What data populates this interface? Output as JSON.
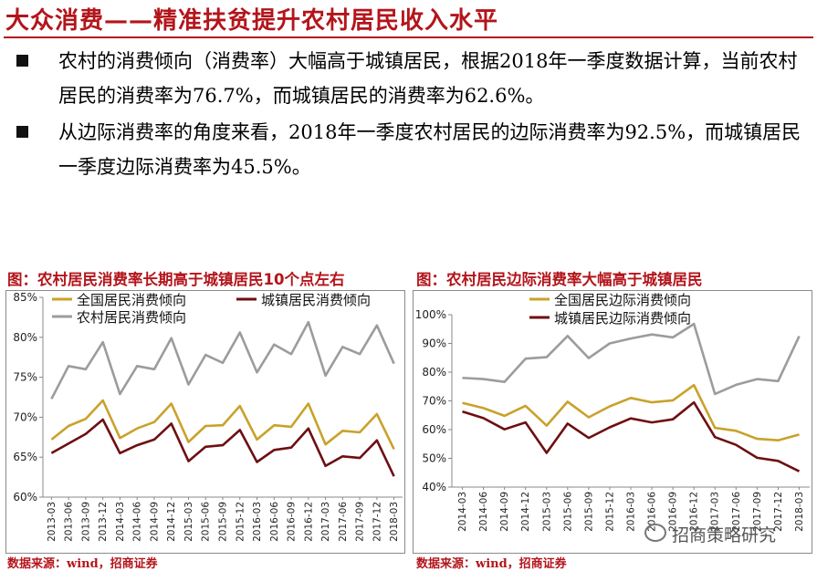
{
  "slide": {
    "title": "大众消费——精准扶贫提升农村居民收入水平",
    "bullets": [
      "农村的消费倾向（消费率）大幅高于城镇居民，根据2018年一季度数据计算，当前农村居民的消费率为76.7%，而城镇居民的消费率为62.6%。",
      "从边际消费率的角度来看，2018年一季度农村居民的边际消费率为92.5%，而城镇居民一季度边际消费率为45.5%。"
    ],
    "watermark": "招商策略研究"
  },
  "colors": {
    "gold": "#c9a22a",
    "maroon": "#6e0f12",
    "gray": "#9c9c9c",
    "accent": "#b3151b"
  },
  "chart_data": [
    {
      "type": "line",
      "title": "图：农村居民消费率长期高于城镇居民10个点左右",
      "source": "数据来源：wind，招商证券",
      "ylim": [
        60,
        85
      ],
      "yticks": [
        "60%",
        "65%",
        "70%",
        "75%",
        "80%",
        "85%"
      ],
      "x": [
        "2013-03",
        "2013-06",
        "2013-09",
        "2013-12",
        "2014-03",
        "2014-06",
        "2014-09",
        "2014-12",
        "2015-03",
        "2015-06",
        "2015-09",
        "2015-12",
        "2016-03",
        "2016-06",
        "2016-09",
        "2016-12",
        "2017-03",
        "2017-06",
        "2017-09",
        "2017-12",
        "2018-03"
      ],
      "series": [
        {
          "name": "全国居民消费倾向",
          "color": "gold",
          "values": [
            67.2,
            68.9,
            69.8,
            72.1,
            67.4,
            68.6,
            69.4,
            71.7,
            66.9,
            68.9,
            69.0,
            71.4,
            67.2,
            69.0,
            68.8,
            71.7,
            66.6,
            68.3,
            68.1,
            70.4,
            66.0
          ]
        },
        {
          "name": "城镇居民消费倾向",
          "color": "maroon",
          "values": [
            65.5,
            66.7,
            67.9,
            69.7,
            65.5,
            66.5,
            67.2,
            69.2,
            64.5,
            66.3,
            66.5,
            68.4,
            64.4,
            65.9,
            66.2,
            68.6,
            63.9,
            65.1,
            64.9,
            67.1,
            62.6
          ]
        },
        {
          "name": "农村居民消费倾向",
          "color": "gray",
          "values": [
            72.3,
            76.4,
            76.0,
            79.4,
            72.9,
            76.4,
            76.0,
            79.9,
            74.1,
            77.8,
            76.8,
            80.6,
            75.6,
            79.1,
            77.9,
            81.9,
            75.2,
            78.8,
            77.9,
            81.5,
            76.7
          ]
        }
      ]
    },
    {
      "type": "line",
      "title": "图：农村居民边际消费率大幅高于城镇居民",
      "source": "数据来源：wind，招商证券",
      "ylim": [
        40,
        100
      ],
      "yticks": [
        "40%",
        "50%",
        "60%",
        "70%",
        "80%",
        "90%",
        "100%"
      ],
      "x": [
        "2014-03",
        "2014-06",
        "2014-09",
        "2014-12",
        "2015-03",
        "2015-06",
        "2015-09",
        "2015-12",
        "2016-03",
        "2016-06",
        "2016-09",
        "2016-12",
        "2017-03",
        "2017-06",
        "2017-09",
        "2017-12",
        "2018-03"
      ],
      "series": [
        {
          "name": "全国居民边际消费倾向",
          "color": "gold",
          "values": [
            69.3,
            67.5,
            64.8,
            68.3,
            61.4,
            69.7,
            64.3,
            68.1,
            71.0,
            69.5,
            70.2,
            75.5,
            60.6,
            59.6,
            56.8,
            56.3,
            58.3
          ]
        },
        {
          "name": "城镇居民边际消费倾向",
          "color": "maroon",
          "values": [
            66.3,
            64.0,
            60.1,
            62.5,
            51.9,
            62.1,
            57.1,
            60.8,
            63.9,
            62.5,
            63.6,
            69.5,
            57.4,
            54.7,
            50.2,
            49.1,
            45.5
          ]
        },
        {
          "name": "农村居民边际消费倾向",
          "color": "gray",
          "values": [
            78.0,
            77.6,
            76.6,
            84.7,
            85.2,
            92.6,
            84.9,
            90.0,
            91.7,
            93.1,
            92.1,
            96.8,
            72.4,
            75.6,
            77.6,
            76.9,
            92.5
          ]
        }
      ]
    }
  ]
}
